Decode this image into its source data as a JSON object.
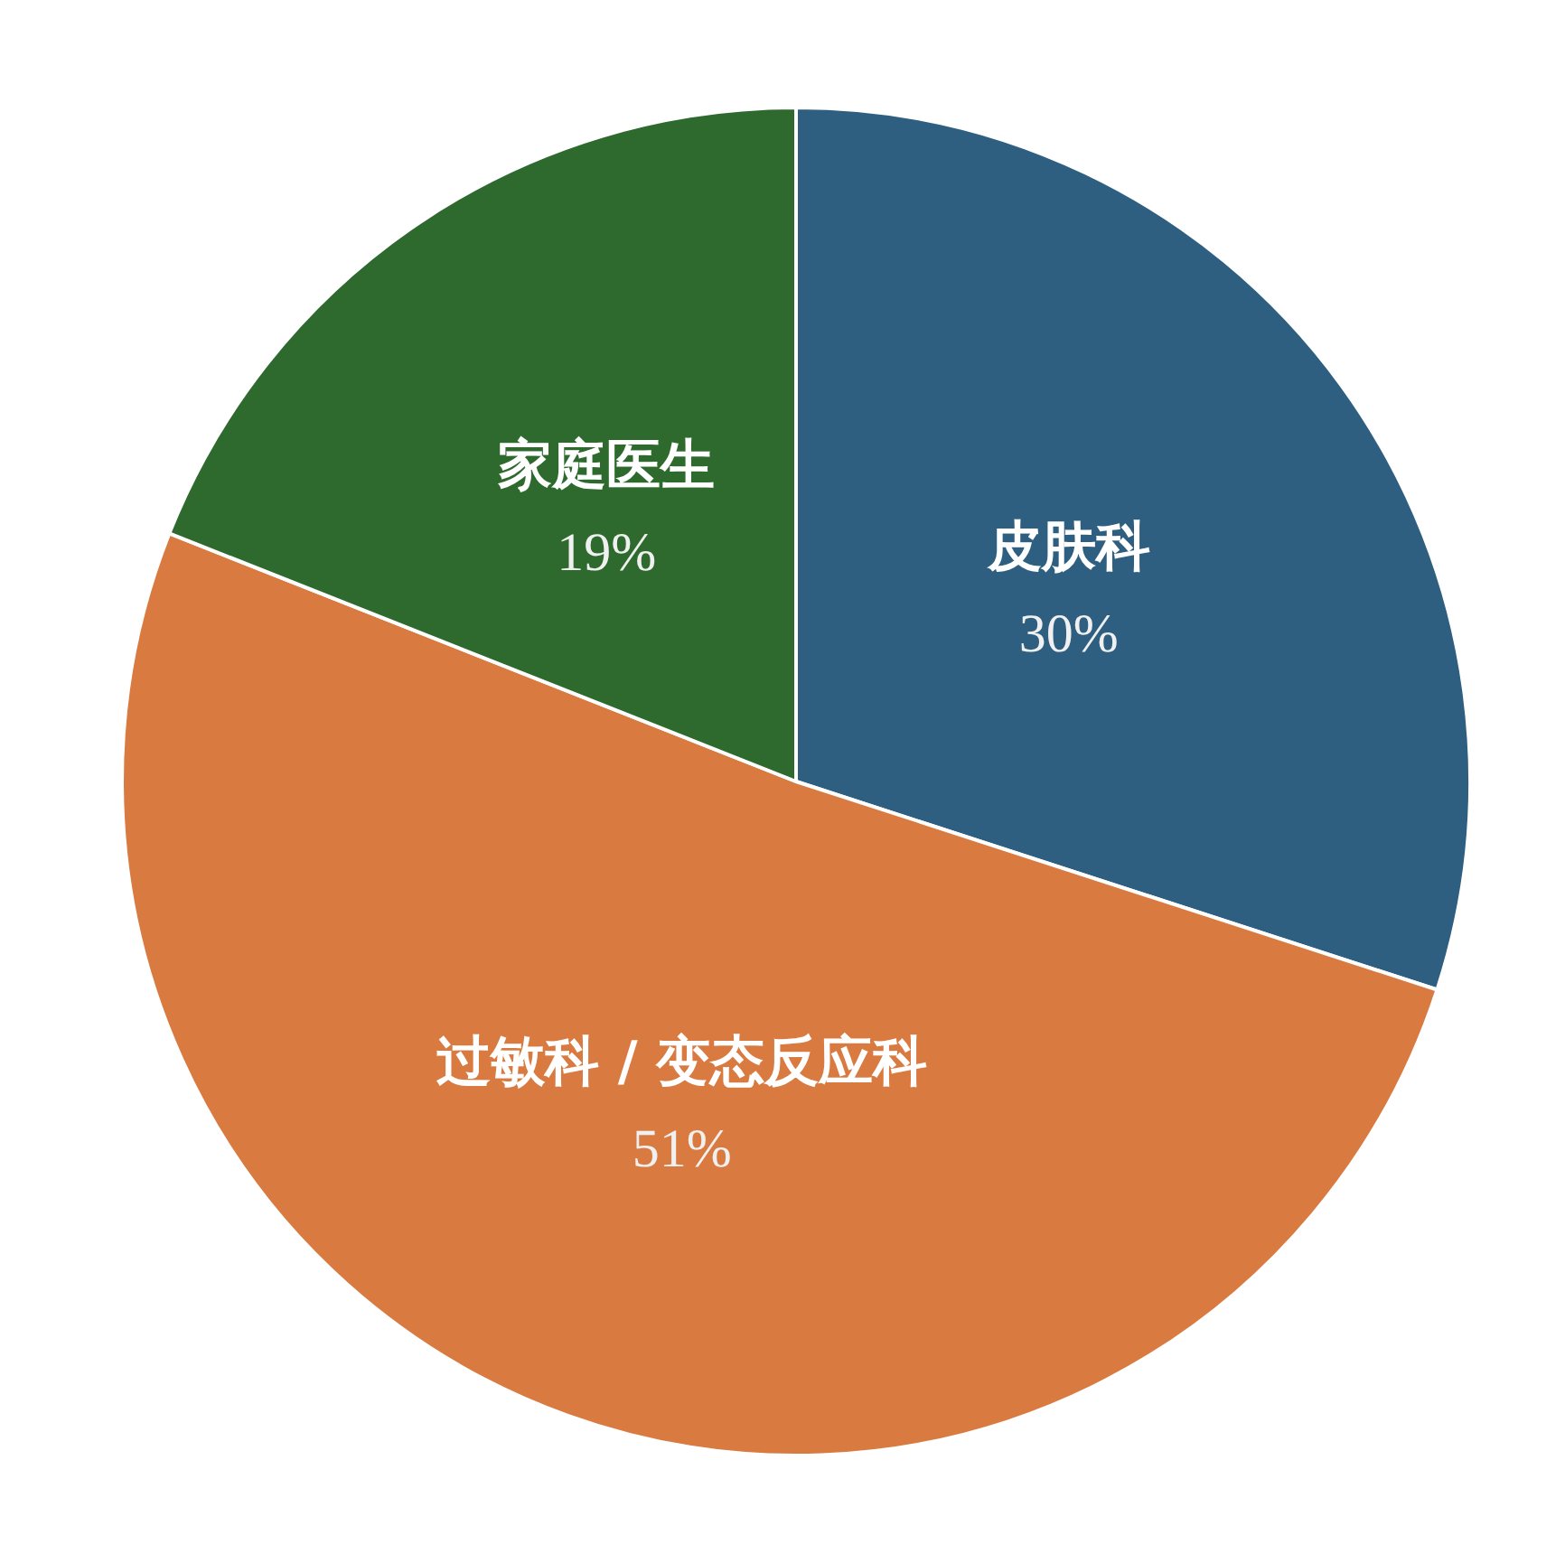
{
  "chart_data": {
    "type": "pie",
    "categories": [
      "皮肤科",
      "过敏科 / 变态反应科",
      "家庭医生"
    ],
    "values": [
      30,
      51,
      19
    ],
    "colors": [
      "#2e5f80",
      "#d97a40",
      "#2e6a2e"
    ],
    "value_labels": [
      "30%",
      "51%",
      "19%"
    ]
  }
}
